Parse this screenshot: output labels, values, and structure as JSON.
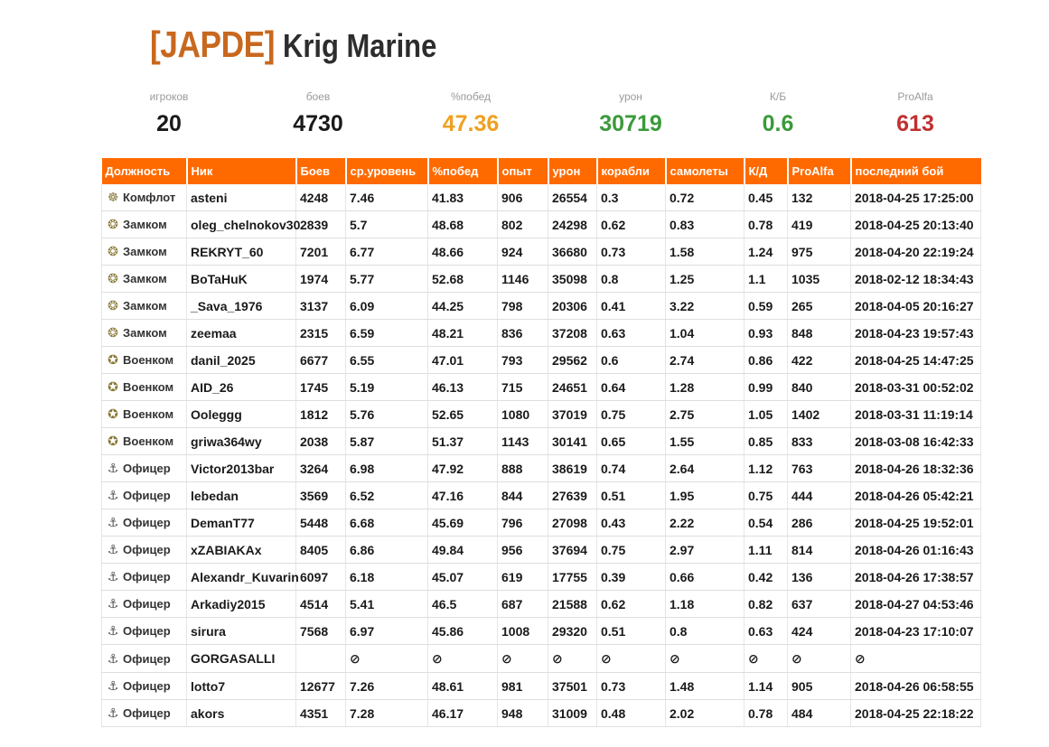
{
  "clan": {
    "tag": "[JAPDE]",
    "name": "Krig Marine"
  },
  "stats": [
    {
      "label": "игроков",
      "value": "20",
      "color": "#1a1a1a"
    },
    {
      "label": "боев",
      "value": "4730",
      "color": "#1a1a1a"
    },
    {
      "label": "%побед",
      "value": "47.36",
      "color": "#f0a020"
    },
    {
      "label": "урон",
      "value": "30719",
      "color": "#3a9a3a"
    },
    {
      "label": "К/Б",
      "value": "0.6",
      "color": "#3a9a3a"
    },
    {
      "label": "ProAlfa",
      "value": "613",
      "color": "#c03030"
    }
  ],
  "table": {
    "headers": [
      "Должность",
      "Ник",
      "Боев",
      "ср.уровень",
      "%побед",
      "опыт",
      "урон",
      "корабли",
      "самолеты",
      "К/Д",
      "ProAlfa",
      "последний бой"
    ],
    "colors": {
      "green": "#3a9a3a",
      "orange": "#f0a020",
      "red": "#c03030",
      "cyan": "#1aa0c0",
      "header_bg": "#ff6a00",
      "nick": "#e8731c"
    },
    "rows": [
      {
        "role": "Комфлот",
        "icon": "admiral-icon",
        "nick": "asteni",
        "battles": "4248",
        "tier": "7.46",
        "wr": "41.83",
        "wr_c": "red",
        "xp": "906",
        "xp_c": "green",
        "dmg": "26554",
        "dmg_c": "green",
        "ships": "0.3",
        "ships_c": "red",
        "planes": "0.72",
        "planes_c": "green",
        "kd": "0.45",
        "kd_c": "orange",
        "pa": "132",
        "pa_c": "red",
        "last": "2018-04-25 17:25:00"
      },
      {
        "role": "Замком",
        "icon": "deputy-icon",
        "nick": "oleg_chelnokov30",
        "battles": "2839",
        "tier": "5.7",
        "wr": "48.68",
        "wr_c": "green",
        "xp": "802",
        "xp_c": "green",
        "dmg": "24298",
        "dmg_c": "green",
        "ships": "0.62",
        "ships_c": "green",
        "planes": "0.83",
        "planes_c": "green",
        "kd": "0.78",
        "kd_c": "green",
        "pa": "419",
        "pa_c": "red",
        "last": "2018-04-25 20:13:40"
      },
      {
        "role": "Замком",
        "icon": "deputy-icon",
        "nick": "REKRYT_60",
        "battles": "7201",
        "tier": "6.77",
        "wr": "48.66",
        "wr_c": "green",
        "xp": "924",
        "xp_c": "green",
        "dmg": "36680",
        "dmg_c": "cyan",
        "ships": "0.73",
        "ships_c": "green",
        "planes": "1.58",
        "planes_c": "green",
        "kd": "1.24",
        "kd_c": "green",
        "pa": "975",
        "pa_c": "green",
        "last": "2018-04-20 22:19:24"
      },
      {
        "role": "Замком",
        "icon": "deputy-icon",
        "nick": "BoTaHuK",
        "battles": "1974",
        "tier": "5.77",
        "wr": "52.68",
        "wr_c": "green",
        "xp": "1146",
        "xp_c": "cyan",
        "dmg": "35098",
        "dmg_c": "green",
        "ships": "0.8",
        "ships_c": "green",
        "planes": "1.25",
        "planes_c": "green",
        "kd": "1.1",
        "kd_c": "green",
        "pa": "1035",
        "pa_c": "green",
        "last": "2018-02-12 18:34:43"
      },
      {
        "role": "Замком",
        "icon": "deputy-icon",
        "nick": "_Sava_1976",
        "battles": "3137",
        "tier": "6.09",
        "wr": "44.25",
        "wr_c": "orange",
        "xp": "798",
        "xp_c": "green",
        "dmg": "20306",
        "dmg_c": "green",
        "ships": "0.41",
        "ships_c": "orange",
        "planes": "3.22",
        "planes_c": "cyan",
        "kd": "0.59",
        "kd_c": "orange",
        "pa": "265",
        "pa_c": "red",
        "last": "2018-04-05 20:16:27"
      },
      {
        "role": "Замком",
        "icon": "deputy-icon",
        "nick": "zeemaa",
        "battles": "2315",
        "tier": "6.59",
        "wr": "48.21",
        "wr_c": "green",
        "xp": "836",
        "xp_c": "green",
        "dmg": "37208",
        "dmg_c": "cyan",
        "ships": "0.63",
        "ships_c": "green",
        "planes": "1.04",
        "planes_c": "green",
        "kd": "0.93",
        "kd_c": "green",
        "pa": "848",
        "pa_c": "orange",
        "last": "2018-04-23 19:57:43"
      },
      {
        "role": "Военком",
        "icon": "commissar-icon",
        "nick": "danil_2025",
        "battles": "6677",
        "tier": "6.55",
        "wr": "47.01",
        "wr_c": "orange",
        "xp": "793",
        "xp_c": "green",
        "dmg": "29562",
        "dmg_c": "green",
        "ships": "0.6",
        "ships_c": "green",
        "planes": "2.74",
        "planes_c": "green",
        "kd": "0.86",
        "kd_c": "green",
        "pa": "422",
        "pa_c": "red",
        "last": "2018-04-25 14:47:25"
      },
      {
        "role": "Военком",
        "icon": "commissar-icon",
        "nick": "AID_26",
        "battles": "1745",
        "tier": "5.19",
        "wr": "46.13",
        "wr_c": "orange",
        "xp": "715",
        "xp_c": "green",
        "dmg": "24651",
        "dmg_c": "green",
        "ships": "0.64",
        "ships_c": "green",
        "planes": "1.28",
        "planes_c": "green",
        "kd": "0.99",
        "kd_c": "green",
        "pa": "840",
        "pa_c": "orange",
        "last": "2018-03-31 00:52:02"
      },
      {
        "role": "Военком",
        "icon": "commissar-icon",
        "nick": "Ooleggg",
        "battles": "1812",
        "tier": "5.76",
        "wr": "52.65",
        "wr_c": "green",
        "xp": "1080",
        "xp_c": "cyan",
        "dmg": "37019",
        "dmg_c": "cyan",
        "ships": "0.75",
        "ships_c": "green",
        "planes": "2.75",
        "planes_c": "green",
        "kd": "1.05",
        "kd_c": "green",
        "pa": "1402",
        "pa_c": "cyan",
        "last": "2018-03-31 11:19:14"
      },
      {
        "role": "Военком",
        "icon": "commissar-icon",
        "nick": "griwa364wy",
        "battles": "2038",
        "tier": "5.87",
        "wr": "51.37",
        "wr_c": "green",
        "xp": "1143",
        "xp_c": "cyan",
        "dmg": "30141",
        "dmg_c": "green",
        "ships": "0.65",
        "ships_c": "green",
        "planes": "1.55",
        "planes_c": "green",
        "kd": "0.85",
        "kd_c": "green",
        "pa": "833",
        "pa_c": "orange",
        "last": "2018-03-08 16:42:33"
      },
      {
        "role": "Офицер",
        "icon": "anchor-icon",
        "nick": "Victor2013bar",
        "battles": "3264",
        "tier": "6.98",
        "wr": "47.92",
        "wr_c": "green",
        "xp": "888",
        "xp_c": "green",
        "dmg": "38619",
        "dmg_c": "cyan",
        "ships": "0.74",
        "ships_c": "green",
        "planes": "2.64",
        "planes_c": "green",
        "kd": "1.12",
        "kd_c": "green",
        "pa": "763",
        "pa_c": "orange",
        "last": "2018-04-26 18:32:36"
      },
      {
        "role": "Офицер",
        "icon": "anchor-icon",
        "nick": "lebedan",
        "battles": "3569",
        "tier": "6.52",
        "wr": "47.16",
        "wr_c": "orange",
        "xp": "844",
        "xp_c": "green",
        "dmg": "27639",
        "dmg_c": "green",
        "ships": "0.51",
        "ships_c": "orange",
        "planes": "1.95",
        "planes_c": "green",
        "kd": "0.75",
        "kd_c": "green",
        "pa": "444",
        "pa_c": "red",
        "last": "2018-04-26 05:42:21"
      },
      {
        "role": "Офицер",
        "icon": "anchor-icon",
        "nick": "DemanT77",
        "battles": "5448",
        "tier": "6.68",
        "wr": "45.69",
        "wr_c": "orange",
        "xp": "796",
        "xp_c": "green",
        "dmg": "27098",
        "dmg_c": "green",
        "ships": "0.43",
        "ships_c": "orange",
        "planes": "2.22",
        "planes_c": "green",
        "kd": "0.54",
        "kd_c": "orange",
        "pa": "286",
        "pa_c": "red",
        "last": "2018-04-25 19:52:01"
      },
      {
        "role": "Офицер",
        "icon": "anchor-icon",
        "nick": "xZABIAKAx",
        "battles": "8405",
        "tier": "6.86",
        "wr": "49.84",
        "wr_c": "green",
        "xp": "956",
        "xp_c": "green",
        "dmg": "37694",
        "dmg_c": "cyan",
        "ships": "0.75",
        "ships_c": "green",
        "planes": "2.97",
        "planes_c": "green",
        "kd": "1.11",
        "kd_c": "green",
        "pa": "814",
        "pa_c": "orange",
        "last": "2018-04-26 01:16:43"
      },
      {
        "role": "Офицер",
        "icon": "anchor-icon",
        "nick": "Alexandr_Kuvarin",
        "battles": "6097",
        "tier": "6.18",
        "wr": "45.07",
        "wr_c": "orange",
        "xp": "619",
        "xp_c": "green",
        "dmg": "17755",
        "dmg_c": "green",
        "ships": "0.39",
        "ships_c": "orange",
        "planes": "0.66",
        "planes_c": "green",
        "kd": "0.42",
        "kd_c": "red",
        "pa": "136",
        "pa_c": "red",
        "last": "2018-04-26 17:38:57"
      },
      {
        "role": "Офицер",
        "icon": "anchor-icon",
        "nick": "Arkadiy2015",
        "battles": "4514",
        "tier": "5.41",
        "wr": "46.5",
        "wr_c": "orange",
        "xp": "687",
        "xp_c": "green",
        "dmg": "21588",
        "dmg_c": "green",
        "ships": "0.62",
        "ships_c": "green",
        "planes": "1.18",
        "planes_c": "green",
        "kd": "0.82",
        "kd_c": "green",
        "pa": "637",
        "pa_c": "red",
        "last": "2018-04-27 04:53:46"
      },
      {
        "role": "Офицер",
        "icon": "anchor-icon",
        "nick": "sirura",
        "battles": "7568",
        "tier": "6.97",
        "wr": "45.86",
        "wr_c": "orange",
        "xp": "1008",
        "xp_c": "green",
        "dmg": "29320",
        "dmg_c": "green",
        "ships": "0.51",
        "ships_c": "orange",
        "planes": "0.8",
        "planes_c": "green",
        "kd": "0.63",
        "kd_c": "orange",
        "pa": "424",
        "pa_c": "red",
        "last": "2018-04-23 17:10:07"
      },
      {
        "role": "Офицер",
        "icon": "anchor-icon",
        "nick": "GORGASALLI",
        "hidden": true
      },
      {
        "role": "Офицер",
        "icon": "anchor-icon",
        "nick": "lotto7",
        "battles": "12677",
        "tier": "7.26",
        "wr": "48.61",
        "wr_c": "green",
        "xp": "981",
        "xp_c": "green",
        "dmg": "37501",
        "dmg_c": "cyan",
        "ships": "0.73",
        "ships_c": "green",
        "planes": "1.48",
        "planes_c": "green",
        "kd": "1.14",
        "kd_c": "green",
        "pa": "905",
        "pa_c": "orange",
        "last": "2018-04-26 06:58:55"
      },
      {
        "role": "Офицер",
        "icon": "anchor-icon",
        "nick": "akors",
        "battles": "4351",
        "tier": "7.28",
        "wr": "46.17",
        "wr_c": "orange",
        "xp": "948",
        "xp_c": "green",
        "dmg": "31009",
        "dmg_c": "green",
        "ships": "0.48",
        "ships_c": "orange",
        "planes": "2.02",
        "planes_c": "green",
        "kd": "0.78",
        "kd_c": "green",
        "pa": "484",
        "pa_c": "red",
        "last": "2018-04-25 22:18:22"
      }
    ]
  }
}
